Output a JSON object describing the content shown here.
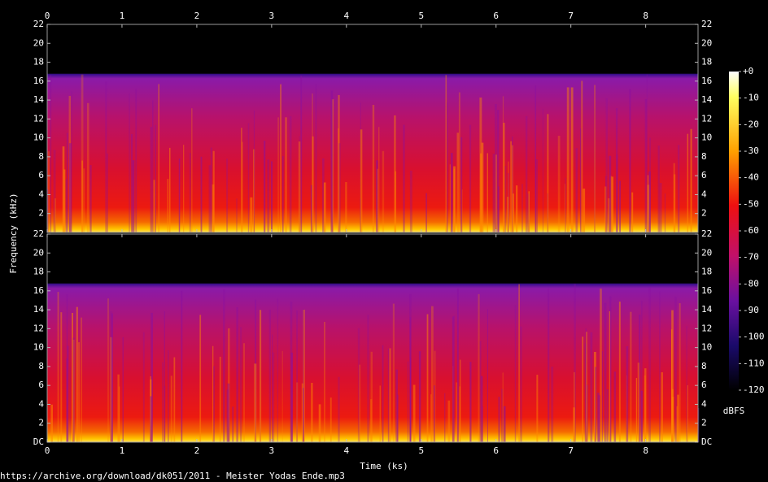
{
  "chart_data": {
    "type": "spectrogram",
    "x_label": "Time (ks)",
    "y_label": "Frequency (kHz)",
    "xlim": [
      0,
      8.7
    ],
    "xticks": [
      0,
      1,
      2,
      3,
      4,
      5,
      6,
      7,
      8
    ],
    "channels": [
      {
        "ylim": [
          0,
          22
        ],
        "yticks": [
          2,
          4,
          6,
          8,
          10,
          12,
          14,
          16,
          18,
          20,
          22
        ]
      },
      {
        "ylim": [
          0,
          22
        ],
        "yticks": [
          {
            "value": 0,
            "label": "DC"
          },
          2,
          4,
          6,
          8,
          10,
          12,
          14,
          16,
          18,
          20,
          22
        ]
      }
    ],
    "colorbar": {
      "label": "dBFS",
      "lim": [
        -120,
        0
      ],
      "ticks": [
        {
          "value": 0,
          "label": "+0"
        },
        -10,
        -20,
        -30,
        -40,
        -50,
        -60,
        -70,
        -80,
        -90,
        -100,
        -110,
        -120
      ]
    },
    "source": "https://archive.org/download/dk051/2011 - Meister Yodas Ende.mp3"
  }
}
